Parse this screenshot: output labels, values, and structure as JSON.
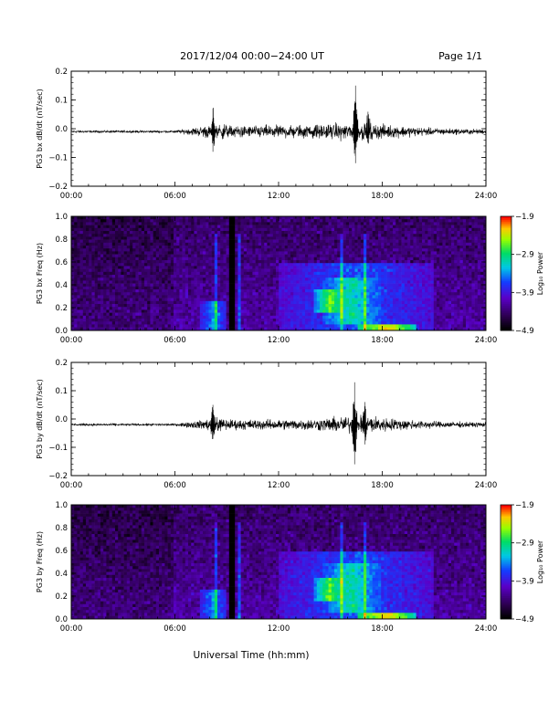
{
  "header": {
    "title": "2017/12/04  00:00−24:00 UT",
    "page": "Page 1/1"
  },
  "xlabel": "Universal Time (hh:mm)",
  "x_ticks": [
    "00:00",
    "06:00",
    "12:00",
    "18:00",
    "24:00"
  ],
  "chart_data": [
    {
      "type": "line",
      "panel": "bx-waveform",
      "ylabel": "PG3 bx dB/dt (nT/sec)",
      "xlim": [
        0,
        24
      ],
      "ylim": [
        -0.2,
        0.2
      ],
      "y_ticks": [
        "0.2",
        "0.1",
        "0.0",
        "−0.1",
        "−0.2"
      ],
      "grid": false,
      "baseline": -0.01,
      "envelope": [
        {
          "x": 0,
          "amp": 0.004
        },
        {
          "x": 6,
          "amp": 0.004
        },
        {
          "x": 6.5,
          "amp": 0.008
        },
        {
          "x": 7.5,
          "amp": 0.018
        },
        {
          "x": 8.3,
          "amp": 0.03
        },
        {
          "x": 9.5,
          "amp": 0.02
        },
        {
          "x": 12,
          "amp": 0.022
        },
        {
          "x": 14,
          "amp": 0.024
        },
        {
          "x": 16,
          "amp": 0.028
        },
        {
          "x": 17,
          "amp": 0.03
        },
        {
          "x": 19,
          "amp": 0.02
        },
        {
          "x": 21,
          "amp": 0.012
        },
        {
          "x": 24,
          "amp": 0.008
        }
      ],
      "spikes": [
        {
          "x": 8.2,
          "min": -0.08,
          "max": 0.07
        },
        {
          "x": 16.45,
          "min": -0.12,
          "max": 0.15
        },
        {
          "x": 17.2,
          "min": -0.05,
          "max": 0.05
        }
      ]
    },
    {
      "type": "heatmap",
      "panel": "bx-spectrogram",
      "ylabel": "PG3 bx Freq (Hz)",
      "xlim": [
        0,
        24
      ],
      "ylim": [
        0,
        1
      ],
      "y_ticks": [
        "1.0",
        "0.8",
        "0.6",
        "0.4",
        "0.2",
        "0.0"
      ],
      "colorbar": {
        "label": "Log₁₀ Power",
        "range": [
          -4.9,
          -1.9
        ],
        "ticks": [
          "−1.9",
          "−2.9",
          "−3.9",
          "−4.9"
        ]
      },
      "data_gap": {
        "x_start": 9.15,
        "x_end": 9.4
      },
      "features": [
        {
          "x_start": 14.0,
          "x_end": 16.0,
          "f_start": 0.15,
          "f_end": 0.35,
          "level": -2.6
        },
        {
          "x_start": 14.5,
          "x_end": 18.0,
          "f_start": 0.05,
          "f_end": 0.45,
          "level": -3.0
        },
        {
          "x_start": 12.0,
          "x_end": 21.0,
          "f_start": 0.0,
          "f_end": 0.6,
          "level": -3.6
        },
        {
          "x_start": 16.5,
          "x_end": 20.0,
          "f_start": 0.0,
          "f_end": 0.05,
          "level": -2.2
        },
        {
          "x_start": 7.5,
          "x_end": 9.0,
          "f_start": 0.0,
          "f_end": 0.25,
          "level": -3.4
        }
      ]
    },
    {
      "type": "line",
      "panel": "by-waveform",
      "ylabel": "PG3 by dB/dt (nT/sec)",
      "xlim": [
        0,
        24
      ],
      "ylim": [
        -0.2,
        0.2
      ],
      "y_ticks": [
        "0.2",
        "0.1",
        "0.0",
        "−0.1",
        "−0.2"
      ],
      "grid": false,
      "baseline": -0.02,
      "envelope": [
        {
          "x": 0,
          "amp": 0.004
        },
        {
          "x": 6,
          "amp": 0.004
        },
        {
          "x": 6.5,
          "amp": 0.008
        },
        {
          "x": 7.5,
          "amp": 0.016
        },
        {
          "x": 8.3,
          "amp": 0.025
        },
        {
          "x": 9.5,
          "amp": 0.018
        },
        {
          "x": 12,
          "amp": 0.018
        },
        {
          "x": 14,
          "amp": 0.02
        },
        {
          "x": 16,
          "amp": 0.03
        },
        {
          "x": 17,
          "amp": 0.032
        },
        {
          "x": 19,
          "amp": 0.02
        },
        {
          "x": 21,
          "amp": 0.012
        },
        {
          "x": 24,
          "amp": 0.008
        }
      ],
      "spikes": [
        {
          "x": 8.2,
          "min": -0.07,
          "max": 0.05
        },
        {
          "x": 16.4,
          "min": -0.16,
          "max": 0.13
        },
        {
          "x": 17.0,
          "min": -0.09,
          "max": 0.06
        }
      ]
    },
    {
      "type": "heatmap",
      "panel": "by-spectrogram",
      "ylabel": "PG3 by Freq (Hz)",
      "xlim": [
        0,
        24
      ],
      "ylim": [
        0,
        1
      ],
      "y_ticks": [
        "1.0",
        "0.8",
        "0.6",
        "0.4",
        "0.2",
        "0.0"
      ],
      "colorbar": {
        "label": "Log₁₀ Power",
        "range": [
          -4.9,
          -1.9
        ],
        "ticks": [
          "−1.9",
          "−2.9",
          "−3.9",
          "−4.9"
        ]
      },
      "data_gap": {
        "x_start": 9.15,
        "x_end": 9.4
      },
      "features": [
        {
          "x_start": 14.0,
          "x_end": 16.0,
          "f_start": 0.15,
          "f_end": 0.35,
          "level": -2.6
        },
        {
          "x_start": 14.5,
          "x_end": 18.0,
          "f_start": 0.05,
          "f_end": 0.5,
          "level": -3.0
        },
        {
          "x_start": 12.0,
          "x_end": 21.0,
          "f_start": 0.0,
          "f_end": 0.6,
          "level": -3.6
        },
        {
          "x_start": 16.5,
          "x_end": 20.0,
          "f_start": 0.0,
          "f_end": 0.05,
          "level": -2.2
        },
        {
          "x_start": 7.5,
          "x_end": 9.0,
          "f_start": 0.0,
          "f_end": 0.25,
          "level": -3.4
        }
      ]
    }
  ]
}
